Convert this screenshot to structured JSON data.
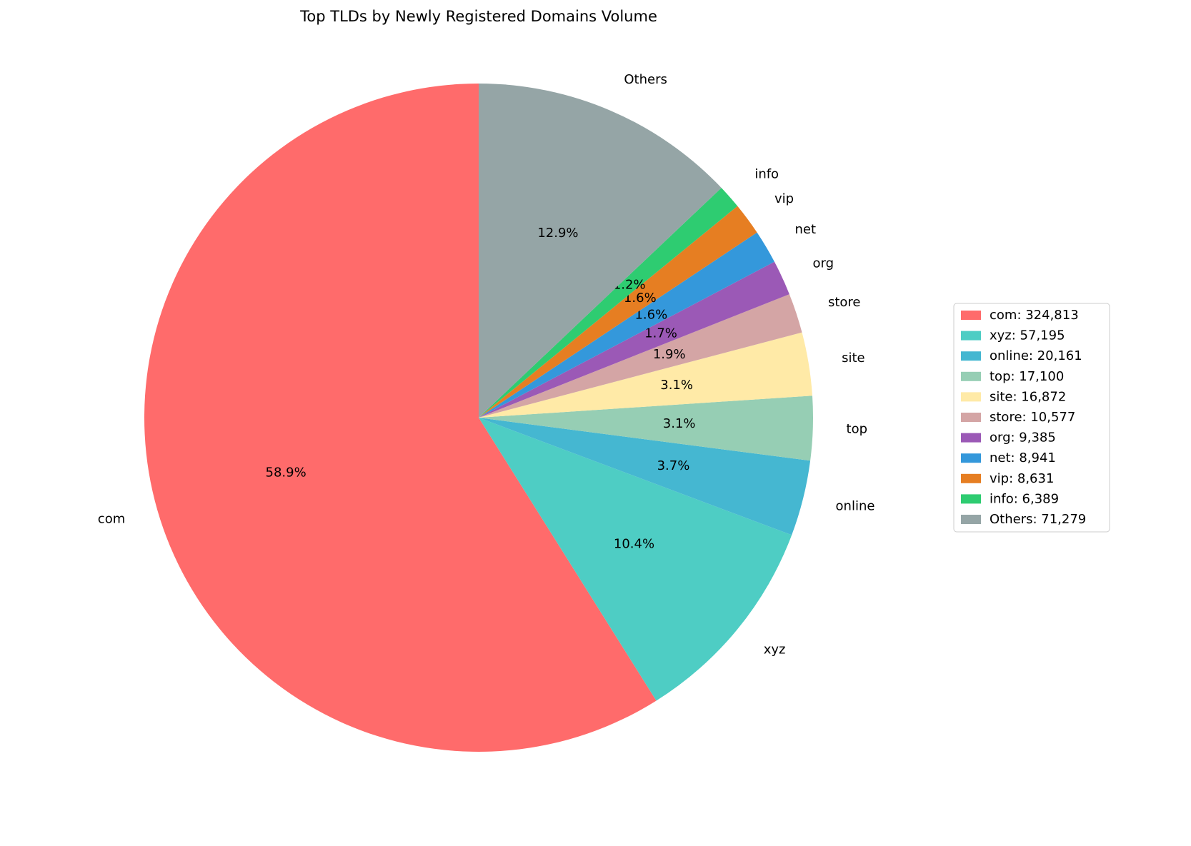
{
  "chart_data": {
    "type": "pie",
    "title": "Top TLDs by Newly Registered Domains Volume",
    "categories": [
      "com",
      "xyz",
      "online",
      "top",
      "site",
      "store",
      "org",
      "net",
      "vip",
      "info",
      "Others"
    ],
    "values": [
      324813,
      57195,
      20161,
      17100,
      16872,
      10577,
      9385,
      8941,
      8631,
      6389,
      71279
    ],
    "value_labels": [
      "com: 324,813",
      "xyz: 57,195",
      "online: 20,161",
      "top: 17,100",
      "site: 16,872",
      "store: 10,577",
      "org: 9,385",
      "net: 8,941",
      "vip: 8,631",
      "info: 6,389",
      "Others: 71,279"
    ],
    "percent_labels": [
      "58.9%",
      "10.4%",
      "3.7%",
      "3.1%",
      "3.1%",
      "1.9%",
      "1.7%",
      "1.6%",
      "1.6%",
      "1.2%",
      "12.9%"
    ],
    "colors": [
      "#ff6b6b",
      "#4ecdc4",
      "#45b7d1",
      "#96ceb4",
      "#ffeaa7",
      "#d4a5a5",
      "#9b59b6",
      "#3498db",
      "#e67e22",
      "#2ecc71",
      "#95a5a6"
    ],
    "legend": "right"
  }
}
